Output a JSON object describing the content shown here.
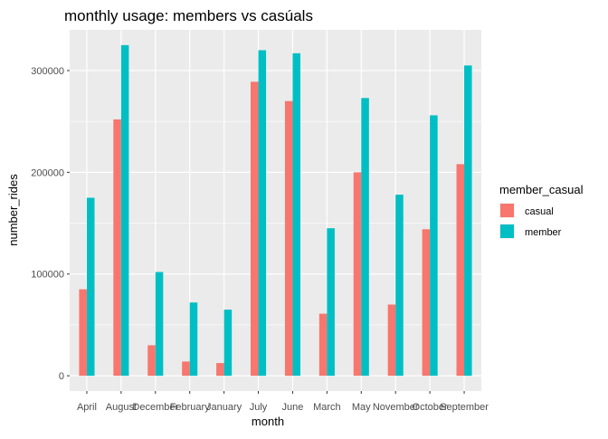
{
  "chart_data": {
    "type": "bar",
    "title": "monthly usage: members vs casúals",
    "xlabel": "month",
    "ylabel": "number_rides",
    "categories": [
      "April",
      "August",
      "December",
      "February",
      "January",
      "July",
      "June",
      "March",
      "May",
      "November",
      "October",
      "September"
    ],
    "series": [
      {
        "name": "casual",
        "color": "#F8766D",
        "values": [
          85000,
          252000,
          30000,
          14000,
          12500,
          289000,
          270000,
          61000,
          200000,
          70000,
          144000,
          208000
        ]
      },
      {
        "name": "member",
        "color": "#00BFC4",
        "values": [
          175000,
          325000,
          102000,
          72000,
          65000,
          320000,
          317000,
          145000,
          273000,
          178000,
          256000,
          305000
        ]
      }
    ],
    "ylim": [
      -15000,
      340000
    ],
    "yticks": [
      0,
      100000,
      200000,
      300000
    ],
    "ytick_labels": [
      "0",
      "100000",
      "200000",
      "300000"
    ],
    "grid": true,
    "legend": {
      "title": "member_casual",
      "position": "right"
    },
    "panel_background": "#EBEBEB",
    "grid_color": "#FFFFFF"
  }
}
